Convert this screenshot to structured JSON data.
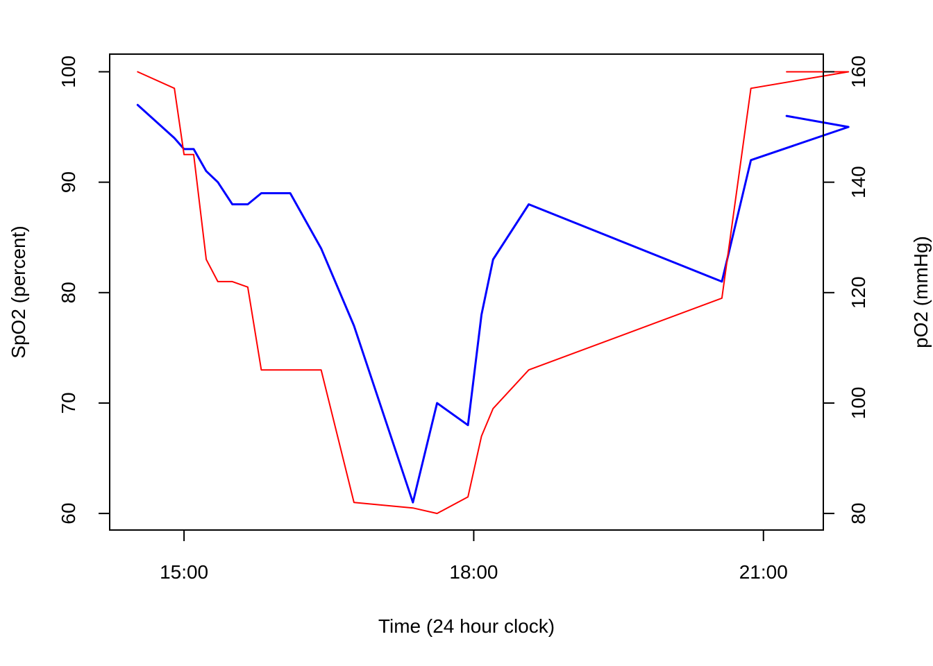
{
  "chart_data": {
    "type": "line",
    "title": "",
    "xlabel": "Time (24 hour clock)",
    "ylabel_left": "SpO2 (percent)",
    "ylabel_right": "pO2 (mmHg)",
    "x_ticks": [
      {
        "label": "15:00",
        "value": 15.0
      },
      {
        "label": "18:00",
        "value": 18.0
      },
      {
        "label": "21:00",
        "value": 21.0
      }
    ],
    "xlim": [
      14.23,
      21.62
    ],
    "ylim_left": [
      58.5,
      101.6
    ],
    "ylim_right": [
      77.0,
      163.2
    ],
    "y_ticks_left": [
      {
        "label": "60",
        "value": 60
      },
      {
        "label": "70",
        "value": 70
      },
      {
        "label": "80",
        "value": 80
      },
      {
        "label": "90",
        "value": 90
      },
      {
        "label": "100",
        "value": 100
      }
    ],
    "y_ticks_right": [
      {
        "label": "80",
        "value": 80
      },
      {
        "label": "100",
        "value": 100
      },
      {
        "label": "120",
        "value": 120
      },
      {
        "label": "140",
        "value": 140
      },
      {
        "label": "160",
        "value": 160
      }
    ],
    "grid": false,
    "legend": "none",
    "series": [
      {
        "axis": "left",
        "color": "#0000ff",
        "x": [
          14.52,
          14.9,
          15.0,
          15.1,
          15.23,
          15.35,
          15.5,
          15.66,
          15.8,
          16.1,
          16.42,
          16.76,
          17.37,
          17.62,
          17.94,
          18.08,
          18.2,
          18.57,
          20.57,
          20.87,
          21.88,
          21.24
        ],
        "y": [
          97,
          94,
          93,
          93,
          91,
          90,
          88,
          88,
          89,
          89,
          84,
          77,
          61,
          70,
          68,
          78,
          83,
          88,
          81,
          92,
          95,
          96
        ]
      },
      {
        "axis": "right",
        "color": "#ff0000",
        "x": [
          14.52,
          14.9,
          15.0,
          15.1,
          15.23,
          15.35,
          15.5,
          15.66,
          15.8,
          16.1,
          16.42,
          16.76,
          17.37,
          17.62,
          17.94,
          18.08,
          18.2,
          18.57,
          20.57,
          20.87,
          21.88,
          21.24
        ],
        "y": [
          160,
          157,
          145,
          145,
          126,
          122,
          122,
          121,
          106,
          106,
          106,
          82,
          81,
          80,
          83,
          94,
          99,
          106,
          119,
          157,
          160,
          160
        ]
      }
    ]
  }
}
